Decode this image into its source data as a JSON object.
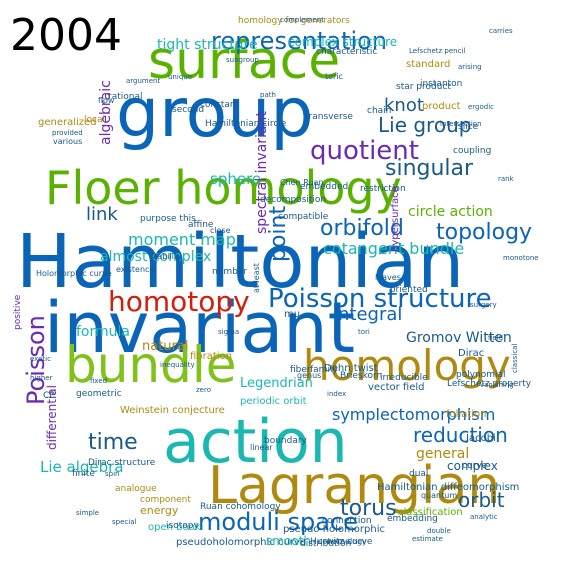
{
  "year": "2004",
  "colors": {
    "blue": "#0a64b8",
    "green": "#5ab200",
    "teal": "#1ab8b0",
    "purple": "#6a2ab4",
    "red": "#d02010",
    "olive": "#b08a10",
    "lime": "#7ec21a",
    "dark": "#1a5a8a"
  },
  "words": [
    {
      "id": "hamiltonian",
      "text": "Hamiltonian",
      "c": "blue"
    },
    {
      "id": "invariant",
      "text": "invariant",
      "c": "blue"
    },
    {
      "id": "group",
      "text": "group",
      "c": "blue"
    },
    {
      "id": "floer-homology",
      "text": "Floer homology",
      "c": "green"
    },
    {
      "id": "action",
      "text": "action",
      "c": "teal"
    },
    {
      "id": "surface",
      "text": "surface",
      "c": "green"
    },
    {
      "id": "lagrangian",
      "text": "Lagrangian",
      "c": "olive"
    },
    {
      "id": "bundle",
      "text": "bundle",
      "c": "lime"
    },
    {
      "id": "homology",
      "text": "homology",
      "c": "olive"
    },
    {
      "id": "homotopy",
      "text": "homotopy",
      "c": "red"
    },
    {
      "id": "poisson-structure",
      "text": "Poisson structure",
      "c": "blue"
    },
    {
      "id": "poisson",
      "text": "Poisson",
      "c": "purple"
    },
    {
      "id": "quotient",
      "text": "quotient",
      "c": "purple"
    },
    {
      "id": "representation",
      "text": "representation",
      "c": "blue"
    },
    {
      "id": "moduli-space",
      "text": "moduli space",
      "c": "blue"
    },
    {
      "id": "topology",
      "text": "topology",
      "c": "blue"
    },
    {
      "id": "reduction",
      "text": "reduction",
      "c": "blue"
    },
    {
      "id": "orbifold",
      "text": "orbifold",
      "c": "blue"
    },
    {
      "id": "point",
      "text": "point",
      "c": "blue"
    },
    {
      "id": "integral",
      "text": "integral",
      "c": "blue"
    },
    {
      "id": "singular",
      "text": "singular",
      "c": "dark"
    },
    {
      "id": "lie-group",
      "text": "Lie group",
      "c": "dark"
    },
    {
      "id": "time",
      "text": "time",
      "c": "dark"
    },
    {
      "id": "torus",
      "text": "torus",
      "c": "dark"
    },
    {
      "id": "orbit",
      "text": "orbit",
      "c": "dark"
    },
    {
      "id": "link",
      "text": "link",
      "c": "dark"
    },
    {
      "id": "knot",
      "text": "knot",
      "c": "dark"
    },
    {
      "id": "cotangent-bundle",
      "text": "cotangent bundle",
      "c": "teal"
    },
    {
      "id": "symplectomorphism",
      "text": "symplectomorphism",
      "c": "blue"
    },
    {
      "id": "moment-map",
      "text": "moment map",
      "c": "teal"
    },
    {
      "id": "sphere",
      "text": "sphere",
      "c": "teal"
    },
    {
      "id": "lie-algebra",
      "text": "Lie algebra",
      "c": "teal"
    },
    {
      "id": "tight-structure",
      "text": "tight structure",
      "c": "teal"
    },
    {
      "id": "complex-structure",
      "text": "complex structure",
      "c": "teal"
    },
    {
      "id": "almost-complex",
      "text": "almost complex",
      "c": "teal"
    },
    {
      "id": "legendrian",
      "text": "Legendrian",
      "c": "teal"
    },
    {
      "id": "gromov-witten",
      "text": "Gromov Witten",
      "c": "dark"
    },
    {
      "id": "circle-action",
      "text": "circle action",
      "c": "green"
    },
    {
      "id": "formula",
      "text": "formula",
      "c": "teal"
    },
    {
      "id": "natural",
      "text": "natural",
      "c": "olive"
    },
    {
      "id": "general",
      "text": "general",
      "c": "olive"
    },
    {
      "id": "spectral-invariant",
      "text": "spectral invariant",
      "c": "purple"
    },
    {
      "id": "algebraic",
      "text": "algebraic",
      "c": "purple"
    },
    {
      "id": "differential",
      "text": "differential",
      "c": "purple"
    },
    {
      "id": "complex",
      "text": "complex",
      "c": "dark"
    },
    {
      "id": "hamiltonian-diffeomorphism",
      "text": "Hamiltonian diffeomorphism",
      "c": "dark"
    },
    {
      "id": "pseudo-holomorphic",
      "text": "pseudo holomorphic",
      "c": "dark"
    },
    {
      "id": "pseudoholomorphic-curve",
      "text": "pseudoholomorphic curve",
      "c": "dark"
    },
    {
      "id": "smooth",
      "text": "smooth",
      "c": "teal"
    },
    {
      "id": "open-book",
      "text": "open book",
      "c": "teal"
    },
    {
      "id": "energy",
      "text": "energy",
      "c": "olive"
    },
    {
      "id": "ruan-cohomology",
      "text": "Ruan cohomology",
      "c": "dark"
    },
    {
      "id": "hurwitz-curve",
      "text": "Hurwitz curve",
      "c": "dark"
    },
    {
      "id": "distribution",
      "text": "distribution",
      "c": "dark"
    },
    {
      "id": "classification",
      "text": "classification",
      "c": "green"
    },
    {
      "id": "periodic-orbit",
      "text": "periodic orbit",
      "c": "teal"
    },
    {
      "id": "weinstein-conjecture",
      "text": "Weinstein conjecture",
      "c": "olive"
    },
    {
      "id": "vector-field",
      "text": "vector field",
      "c": "dark"
    },
    {
      "id": "fibration",
      "text": "fibration",
      "c": "olive"
    },
    {
      "id": "dehn-twist",
      "text": "Dehn twist",
      "c": "dark"
    },
    {
      "id": "family",
      "text": "family",
      "c": "dark"
    },
    {
      "id": "brieskorn",
      "text": "Brieskorn",
      "c": "dark"
    },
    {
      "id": "fiber",
      "text": "fiber",
      "c": "dark"
    },
    {
      "id": "irreducible",
      "text": "irreducible",
      "c": "dark"
    },
    {
      "id": "embedded",
      "text": "embedded",
      "c": "dark"
    },
    {
      "id": "restriction",
      "text": "restriction",
      "c": "dark"
    },
    {
      "id": "decomposition",
      "text": "decomposition",
      "c": "dark"
    },
    {
      "id": "compatible",
      "text": "compatible",
      "c": "dark"
    },
    {
      "id": "transverse",
      "text": "transverse",
      "c": "dark"
    },
    {
      "id": "hamiltonian-circle",
      "text": "Hamiltonian circle",
      "c": "dark"
    },
    {
      "id": "rational",
      "text": "rational",
      "c": "dark"
    },
    {
      "id": "constant",
      "text": "constant",
      "c": "dark"
    },
    {
      "id": "second",
      "text": "second",
      "c": "dark"
    },
    {
      "id": "local",
      "text": "local",
      "c": "olive"
    },
    {
      "id": "generalized",
      "text": "generalized",
      "c": "olive"
    },
    {
      "id": "dirac-structure",
      "text": "Dirac structure",
      "c": "dark"
    },
    {
      "id": "finite",
      "text": "finite",
      "c": "dark"
    },
    {
      "id": "isotopy",
      "text": "isotopy",
      "c": "dark"
    },
    {
      "id": "component",
      "text": "component",
      "c": "olive"
    },
    {
      "id": "analogue",
      "text": "analogue",
      "c": "olive"
    },
    {
      "id": "geometric",
      "text": "geometric",
      "c": "dark"
    },
    {
      "id": "boundary",
      "text": "boundary",
      "c": "dark"
    },
    {
      "id": "polynomial",
      "text": "polynomial",
      "c": "dark"
    },
    {
      "id": "foliation",
      "text": "foliation",
      "c": "olive"
    },
    {
      "id": "jacobi",
      "text": "Jacobi",
      "c": "dark"
    },
    {
      "id": "dirac",
      "text": "Dirac",
      "c": "dark"
    },
    {
      "id": "lefschetz-property",
      "text": "Lefschetz property",
      "c": "dark"
    },
    {
      "id": "dual",
      "text": "dual",
      "c": "dark"
    },
    {
      "id": "product",
      "text": "product",
      "c": "olive"
    },
    {
      "id": "standard",
      "text": "standard",
      "c": "olive"
    },
    {
      "id": "chain",
      "text": "chain",
      "c": "dark"
    },
    {
      "id": "coupling",
      "text": "coupling",
      "c": "dark"
    },
    {
      "id": "slice",
      "text": "slice",
      "c": "dark"
    },
    {
      "id": "instanton",
      "text": "instanton",
      "c": "dark"
    },
    {
      "id": "characteristic",
      "text": "characteristic",
      "c": "dark"
    },
    {
      "id": "homology-for-generators",
      "text": "homology for generators",
      "c": "olive"
    },
    {
      "id": "embedding",
      "text": "embedding",
      "c": "dark"
    },
    {
      "id": "connection",
      "text": "connection",
      "c": "dark"
    },
    {
      "id": "cohomology",
      "text": "cohomology",
      "c": "dark"
    },
    {
      "id": "linear",
      "text": "linear",
      "c": "dark"
    },
    {
      "id": "number",
      "text": "number",
      "c": "dark"
    },
    {
      "id": "close",
      "text": "close",
      "c": "dark"
    },
    {
      "id": "affine",
      "text": "affine",
      "c": "dark"
    },
    {
      "id": "stability",
      "text": "stability",
      "c": "dark"
    },
    {
      "id": "existence",
      "text": "existence",
      "c": "dark"
    },
    {
      "id": "hypersurface",
      "text": "hypersurface",
      "c": "purple"
    },
    {
      "id": "oriented",
      "text": "oriented",
      "c": "dark"
    },
    {
      "id": "leaves",
      "text": "leaves",
      "c": "dark"
    },
    {
      "id": "genus",
      "text": "genus",
      "c": "dark"
    },
    {
      "id": "mu",
      "text": "mu",
      "c": "dark"
    },
    {
      "id": "at-least",
      "text": "at least",
      "c": "dark"
    },
    {
      "id": "quantum",
      "text": "quantum",
      "c": "dark"
    },
    {
      "id": "purpose-this",
      "text": "purpose this",
      "c": "dark"
    },
    {
      "id": "chen-ruan",
      "text": "Chen Ruan",
      "c": "dark"
    },
    {
      "id": "holomorphic-curve",
      "text": "Holomorphic curve",
      "c": "dark"
    },
    {
      "id": "various",
      "text": "various",
      "c": "dark"
    },
    {
      "id": "provided",
      "text": "provided",
      "c": "dark"
    },
    {
      "id": "positive",
      "text": "positive",
      "c": "purple"
    },
    {
      "id": "cp",
      "text": "CP",
      "c": "dark"
    },
    {
      "id": "curve",
      "text": "curve",
      "c": "dark"
    },
    {
      "id": "star-product",
      "text": "star product",
      "c": "dark"
    },
    {
      "id": "toric",
      "text": "toric",
      "c": "dark"
    },
    {
      "id": "sigma",
      "text": "sigma",
      "c": "dark"
    },
    {
      "id": "exotic",
      "text": "exotic",
      "c": "dark"
    },
    {
      "id": "higher",
      "text": "higher",
      "c": "dark"
    },
    {
      "id": "inequality",
      "text": "inequality",
      "c": "dark"
    },
    {
      "id": "estimate",
      "text": "estimate",
      "c": "dark"
    },
    {
      "id": "double",
      "text": "double",
      "c": "dark"
    },
    {
      "id": "spin",
      "text": "spin",
      "c": "dark"
    },
    {
      "id": "special",
      "text": "special",
      "c": "dark"
    },
    {
      "id": "simple",
      "text": "simple",
      "c": "dark"
    },
    {
      "id": "rank",
      "text": "rank",
      "c": "dark"
    },
    {
      "id": "analytic",
      "text": "analytic",
      "c": "dark"
    },
    {
      "id": "vanishing",
      "text": "vanishing",
      "c": "dark"
    },
    {
      "id": "arising",
      "text": "arising",
      "c": "dark"
    },
    {
      "id": "intersection",
      "text": "intersection",
      "c": "dark"
    },
    {
      "id": "complement",
      "text": "complement",
      "c": "dark"
    },
    {
      "id": "carries",
      "text": "carries",
      "c": "dark"
    },
    {
      "id": "lefschetz-pencil",
      "text": "Lefschetz pencil",
      "c": "dark"
    },
    {
      "id": "ergodic",
      "text": "ergodic",
      "c": "dark"
    },
    {
      "id": "subgroup",
      "text": "subgroup",
      "c": "dark"
    },
    {
      "id": "argument",
      "text": "argument",
      "c": "dark"
    },
    {
      "id": "classical",
      "text": "classical",
      "c": "dark"
    },
    {
      "id": "surgery",
      "text": "surgery",
      "c": "dark"
    },
    {
      "id": "tori",
      "text": "tori",
      "c": "dark"
    },
    {
      "id": "monotone",
      "text": "monotone",
      "c": "dark"
    },
    {
      "id": "zero",
      "text": "zero",
      "c": "dark"
    },
    {
      "id": "path",
      "text": "path",
      "c": "dark"
    },
    {
      "id": "unique",
      "text": "unique",
      "c": "dark"
    },
    {
      "id": "index",
      "text": "index",
      "c": "dark"
    },
    {
      "id": "fixed",
      "text": "fixed",
      "c": "dark"
    },
    {
      "id": "flow",
      "text": "flow",
      "c": "dark"
    },
    {
      "id": "field",
      "text": "field",
      "c": "dark"
    }
  ]
}
